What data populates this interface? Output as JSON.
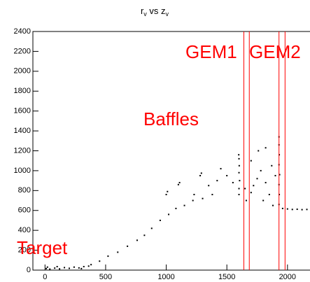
{
  "chart_data": {
    "type": "scatter",
    "title_parts": [
      "r",
      "v",
      " vs z",
      "v"
    ],
    "x": [
      10,
      40,
      80,
      120,
      160,
      200,
      240,
      280,
      320,
      360,
      20,
      100,
      300,
      380,
      450,
      520,
      600,
      680,
      760,
      820,
      880,
      950,
      1020,
      1080,
      1150,
      1220,
      1300,
      1380,
      1000,
      1010,
      1100,
      1110,
      1280,
      1290,
      1450,
      1230,
      1350,
      1420,
      1500,
      1550,
      1600,
      1600,
      1605,
      1600,
      1602,
      1600,
      1598,
      1660,
      1700,
      1720,
      1750,
      1780,
      1800,
      1820,
      1850,
      1870,
      1880,
      1700,
      1760,
      1900,
      1650,
      1820,
      1930,
      1932,
      1930,
      1935,
      1930,
      1932,
      1930,
      1930,
      1960,
      2000,
      2040,
      2080,
      2120,
      2160
    ],
    "series": [
      {
        "color": "#000000",
        "values": [
          15,
          10,
          20,
          12,
          25,
          18,
          30,
          22,
          35,
          40,
          30,
          35,
          15,
          55,
          90,
          140,
          180,
          240,
          300,
          350,
          420,
          500,
          560,
          620,
          650,
          700,
          720,
          760,
          760,
          790,
          860,
          880,
          950,
          975,
          1020,
          760,
          850,
          900,
          950,
          880,
          760,
          820,
          900,
          980,
          1050,
          1120,
          1160,
          700,
          780,
          850,
          920,
          1000,
          700,
          880,
          760,
          1050,
          650,
          1100,
          1200,
          950,
          820,
          1230,
          660,
          760,
          860,
          960,
          1060,
          1160,
          1260,
          1340,
          620,
          615,
          610,
          612,
          608,
          610
        ]
      }
    ],
    "xlim": [
      -100,
      2180
    ],
    "xticks": [
      0,
      500,
      1000,
      1500,
      2000
    ],
    "ylim": [
      0,
      2400
    ],
    "yticks": [
      0,
      200,
      400,
      600,
      800,
      1000,
      1200,
      1400,
      1600,
      1800,
      2000,
      2200,
      2400
    ],
    "vlines": [
      1640,
      1685,
      1930,
      1980
    ],
    "vline_color": "#ff0000",
    "annotations": [
      "GEM1",
      "GEM2",
      "Baffles",
      "Target"
    ]
  }
}
